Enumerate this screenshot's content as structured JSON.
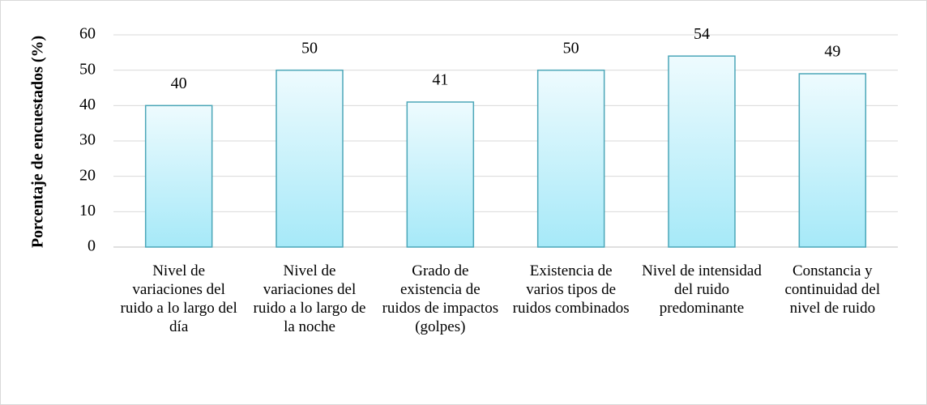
{
  "chart_data": {
    "type": "bar",
    "y_label": "Porcentaje de encuestados (%)",
    "categories": [
      "Nivel de variaciones del ruido a lo largo del día",
      "Nivel de variaciones del ruido a lo largo de la noche",
      "Grado de existencia de ruidos de impactos (golpes)",
      "Existencia de varios tipos de ruidos combinados",
      "Nivel de intensidad del ruido predominante",
      "Constancia y continuidad del nivel de ruido"
    ],
    "values": [
      40,
      50,
      41,
      50,
      54,
      49
    ],
    "color": "#a6e9f8",
    "ylim": [
      0,
      60
    ],
    "yticks": [
      0,
      10,
      20,
      30,
      40,
      50,
      60
    ],
    "grid": true
  }
}
